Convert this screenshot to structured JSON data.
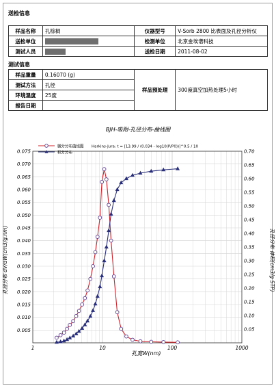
{
  "sections": {
    "send_info": "送检信息",
    "test_info": "测试信息"
  },
  "send": {
    "sample_name_label": "样品名称",
    "sample_name": "孔棕榈",
    "instrument_label": "仪器型号",
    "instrument": "V-Sorb 2800   比表面及孔径分析仪",
    "send_unit_label": "送检单位",
    "test_unit_label": "检测单位",
    "test_unit": "北京金埃谱科技",
    "tester_label": "测试人员",
    "send_date_label": "送检日期",
    "send_date": "2011-08-02"
  },
  "test": {
    "weight_label": "样品重量",
    "weight": "0.16070 (g)",
    "method_label": "测试方法",
    "method": "孔径",
    "temp_label": "环境温度",
    "temp": "25度",
    "date_label": "报告日期",
    "pretreat_label": "样品预处理",
    "pretreat": "300度真空加热处理5小时"
  },
  "chart_data": {
    "type": "line",
    "title": "BJH-吸附-孔径分布-曲线图",
    "xlabel": "孔宽W(nm)",
    "ylabel_left": "孔径分布 dV/dW(cm3/g.nm)",
    "ylabel_right": "孔径分布 体积(cm3/g STP)",
    "x_scale": "log",
    "xlim": [
      1,
      1000
    ],
    "x_ticks": [
      "1",
      "10",
      "100",
      "1000"
    ],
    "ylim_left": [
      0,
      0.075
    ],
    "y_ticks_left": [
      "0.005",
      "0.010",
      "0.015",
      "0.020",
      "0.025",
      "0.030",
      "0.035",
      "0.040",
      "0.045",
      "0.050",
      "0.055",
      "0.060",
      "0.065",
      "0.070",
      "0.075"
    ],
    "ylim_right": [
      0,
      0.7
    ],
    "y_ticks_right": [
      "0.05",
      "0.10",
      "0.15",
      "0.20",
      "0.25",
      "0.30",
      "0.35",
      "0.40",
      "0.45",
      "0.50",
      "0.55",
      "0.60",
      "0.65",
      "0.70"
    ],
    "grid": true,
    "legend_position": "top-left",
    "legend_note": "Harkins-Jura: t = [13.99 / (0.034 - log10(P/P0))]^0.5 / 10",
    "series": [
      {
        "name": "微分分布曲线图",
        "axis": "left",
        "color": "#d0212a",
        "marker": "circle",
        "x": [
          2.2,
          2.5,
          2.8,
          3.1,
          3.4,
          3.8,
          4.2,
          4.6,
          5.1,
          5.6,
          6.1,
          6.7,
          7.3,
          7.9,
          8.5,
          9.2,
          9.8,
          10.6,
          11.4,
          12.3,
          13.3,
          14.6,
          16.3,
          18.5,
          22,
          27,
          35,
          50,
          75,
          120
        ],
        "y": [
          0.002,
          0.003,
          0.004,
          0.0055,
          0.007,
          0.0085,
          0.0105,
          0.0125,
          0.015,
          0.0175,
          0.0205,
          0.025,
          0.03,
          0.0355,
          0.0415,
          0.049,
          0.063,
          0.068,
          0.064,
          0.054,
          0.04,
          0.026,
          0.012,
          0.0055,
          0.0025,
          0.0012,
          0.0006,
          0.0004,
          0.0003,
          0.0002
        ]
      },
      {
        "name": "积分分布",
        "axis": "right",
        "color": "#2a2f7a",
        "marker": "triangle",
        "x": [
          2.2,
          2.5,
          2.8,
          3.1,
          3.4,
          3.8,
          4.2,
          4.6,
          5.1,
          5.6,
          6.1,
          6.7,
          7.3,
          7.9,
          8.5,
          9.2,
          9.8,
          10.6,
          11.4,
          12.3,
          13.3,
          14.6,
          16.3,
          18.5,
          22,
          27,
          35,
          50,
          75,
          120
        ],
        "y": [
          0.002,
          0.004,
          0.007,
          0.012,
          0.018,
          0.025,
          0.033,
          0.042,
          0.053,
          0.066,
          0.08,
          0.097,
          0.118,
          0.142,
          0.17,
          0.205,
          0.245,
          0.3,
          0.35,
          0.41,
          0.47,
          0.52,
          0.56,
          0.585,
          0.6,
          0.612,
          0.62,
          0.627,
          0.632,
          0.636
        ]
      }
    ]
  }
}
